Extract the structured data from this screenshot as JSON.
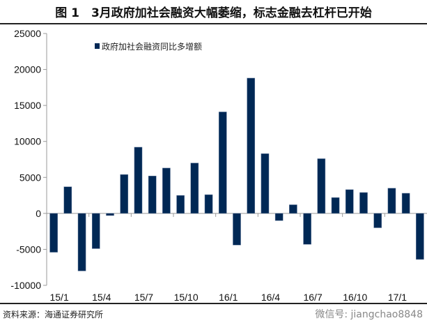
{
  "header": {
    "title": "图 1　3月政府加社会融资大幅萎缩，标志金融去杠杆已开始"
  },
  "footer": {
    "source": "资料来源：海通证券研究所",
    "watermark": "微信号: jiangchao8848"
  },
  "chart_data": {
    "type": "bar",
    "title": "",
    "xlabel": "",
    "ylabel": "",
    "ylim": [
      -10000,
      25000
    ],
    "yticks": [
      -10000,
      -5000,
      0,
      5000,
      10000,
      15000,
      20000,
      25000
    ],
    "grid": false,
    "legend_placement": "top-left",
    "color": "#002855",
    "categories": [
      "15/1",
      "15/2",
      "15/3",
      "15/4",
      "15/5",
      "15/6",
      "15/7",
      "15/8",
      "15/9",
      "15/10",
      "15/11",
      "15/12",
      "16/1",
      "16/2",
      "16/3",
      "16/4",
      "16/5",
      "16/6",
      "16/7",
      "16/8",
      "16/9",
      "16/10",
      "16/11",
      "16/12",
      "17/1",
      "17/2",
      "17/3"
    ],
    "xtick_labels": [
      "15/1",
      "15/4",
      "15/7",
      "15/10",
      "16/1",
      "16/4",
      "16/7",
      "16/10",
      "17/1"
    ],
    "series": [
      {
        "name": "政府加社会融资同比多增额",
        "values": [
          -5400,
          3700,
          -8000,
          -4900,
          -300,
          5400,
          9200,
          5200,
          6300,
          2500,
          7000,
          2600,
          14100,
          -4400,
          18800,
          8300,
          -1000,
          1200,
          -4300,
          7600,
          2200,
          3300,
          2900,
          -2000,
          3500,
          2800,
          -6400
        ]
      }
    ]
  }
}
